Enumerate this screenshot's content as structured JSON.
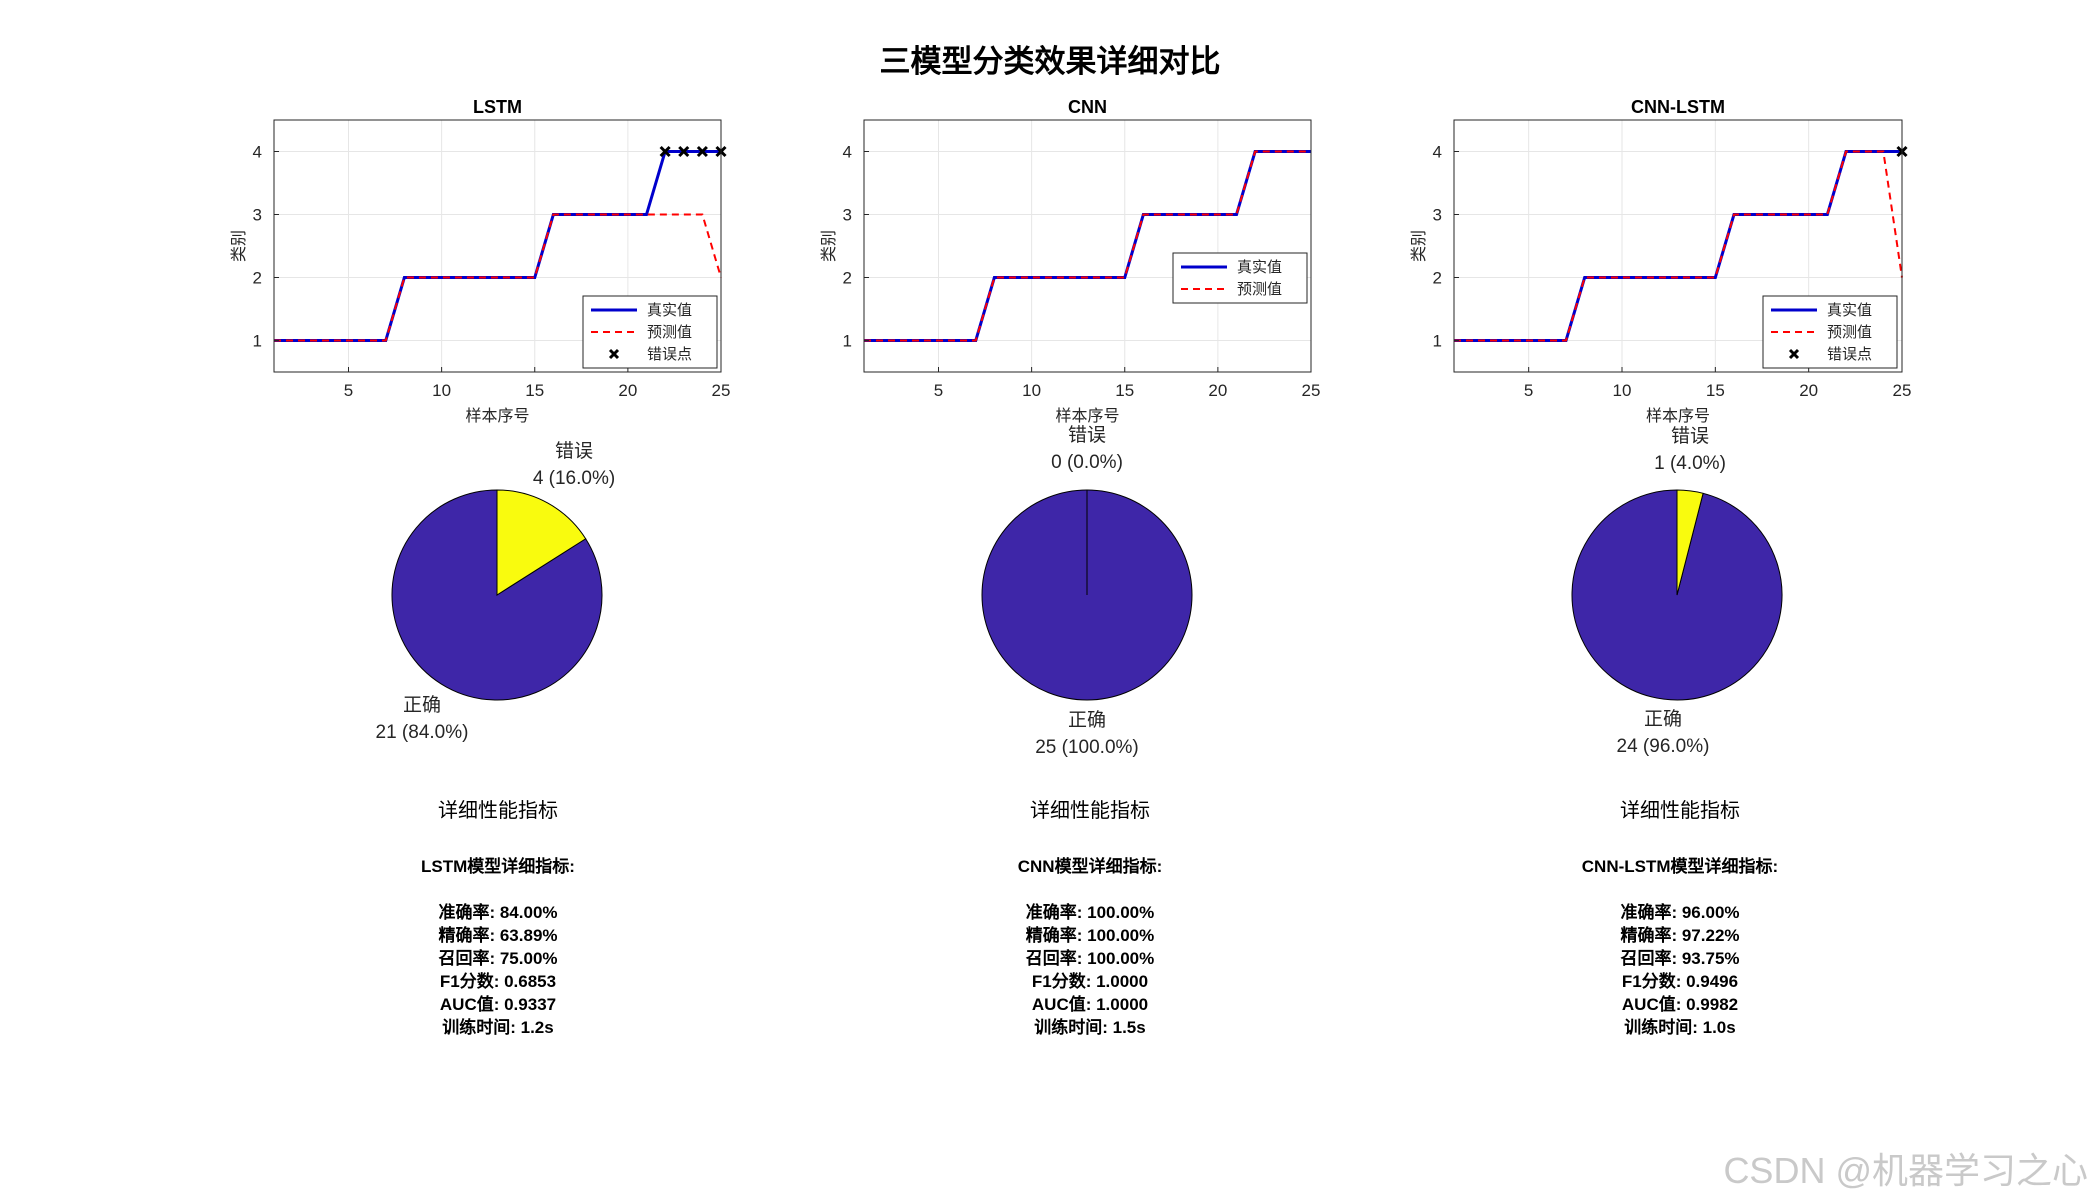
{
  "figure": {
    "title": "三模型分类效果详细对比",
    "watermark": "CSDN @机器学习之心"
  },
  "colors": {
    "true_line": "#0000cc",
    "pred_line": "#ff0000",
    "error_marker": "#000000",
    "pie_correct": "#3e26a8",
    "pie_error": "#f9fb0e",
    "grid": "#e6e6e6",
    "axes": "#262626"
  },
  "chart_data": [
    {
      "type": "line",
      "title": "LSTM",
      "xlabel": "样本序号",
      "ylabel": "类别",
      "xlim": [
        1,
        25
      ],
      "ylim": [
        0.5,
        4.5
      ],
      "xticks": [
        5,
        10,
        15,
        20,
        25
      ],
      "yticks": [
        1,
        2,
        3,
        4
      ],
      "grid": true,
      "legend_position": "bottom-right",
      "x": [
        1,
        2,
        3,
        4,
        5,
        6,
        7,
        8,
        9,
        10,
        11,
        12,
        13,
        14,
        15,
        16,
        17,
        18,
        19,
        20,
        21,
        22,
        23,
        24,
        25
      ],
      "series": [
        {
          "name": "真实值",
          "style": "solid",
          "values": [
            1,
            1,
            1,
            1,
            1,
            1,
            1,
            2,
            2,
            2,
            2,
            2,
            2,
            2,
            2,
            3,
            3,
            3,
            3,
            3,
            3,
            4,
            4,
            4,
            4
          ]
        },
        {
          "name": "预测值",
          "style": "dashed",
          "values": [
            1,
            1,
            1,
            1,
            1,
            1,
            1,
            2,
            2,
            2,
            2,
            2,
            2,
            2,
            2,
            3,
            3,
            3,
            3,
            3,
            3,
            3,
            3,
            3,
            2
          ]
        },
        {
          "name": "错误点",
          "style": "marker",
          "points": [
            [
              22,
              4
            ],
            [
              23,
              4
            ],
            [
              24,
              4
            ],
            [
              25,
              4
            ]
          ]
        }
      ]
    },
    {
      "type": "line",
      "title": "CNN",
      "xlabel": "样本序号",
      "ylabel": "类别",
      "xlim": [
        1,
        25
      ],
      "ylim": [
        0.5,
        4.5
      ],
      "xticks": [
        5,
        10,
        15,
        20,
        25
      ],
      "yticks": [
        1,
        2,
        3,
        4
      ],
      "grid": true,
      "legend_position": "right",
      "x": [
        1,
        2,
        3,
        4,
        5,
        6,
        7,
        8,
        9,
        10,
        11,
        12,
        13,
        14,
        15,
        16,
        17,
        18,
        19,
        20,
        21,
        22,
        23,
        24,
        25
      ],
      "series": [
        {
          "name": "真实值",
          "style": "solid",
          "values": [
            1,
            1,
            1,
            1,
            1,
            1,
            1,
            2,
            2,
            2,
            2,
            2,
            2,
            2,
            2,
            3,
            3,
            3,
            3,
            3,
            3,
            4,
            4,
            4,
            4
          ]
        },
        {
          "name": "预测值",
          "style": "dashed",
          "values": [
            1,
            1,
            1,
            1,
            1,
            1,
            1,
            2,
            2,
            2,
            2,
            2,
            2,
            2,
            2,
            3,
            3,
            3,
            3,
            3,
            3,
            4,
            4,
            4,
            4
          ]
        }
      ]
    },
    {
      "type": "line",
      "title": "CNN-LSTM",
      "xlabel": "样本序号",
      "ylabel": "类别",
      "xlim": [
        1,
        25
      ],
      "ylim": [
        0.5,
        4.5
      ],
      "xticks": [
        5,
        10,
        15,
        20,
        25
      ],
      "yticks": [
        1,
        2,
        3,
        4
      ],
      "grid": true,
      "legend_position": "bottom-right",
      "x": [
        1,
        2,
        3,
        4,
        5,
        6,
        7,
        8,
        9,
        10,
        11,
        12,
        13,
        14,
        15,
        16,
        17,
        18,
        19,
        20,
        21,
        22,
        23,
        24,
        25
      ],
      "series": [
        {
          "name": "真实值",
          "style": "solid",
          "values": [
            1,
            1,
            1,
            1,
            1,
            1,
            1,
            2,
            2,
            2,
            2,
            2,
            2,
            2,
            2,
            3,
            3,
            3,
            3,
            3,
            3,
            4,
            4,
            4,
            4
          ]
        },
        {
          "name": "预测值",
          "style": "dashed",
          "values": [
            1,
            1,
            1,
            1,
            1,
            1,
            1,
            2,
            2,
            2,
            2,
            2,
            2,
            2,
            2,
            3,
            3,
            3,
            3,
            3,
            3,
            4,
            4,
            4,
            2
          ]
        },
        {
          "name": "错误点",
          "style": "marker",
          "points": [
            [
              25,
              4
            ]
          ]
        }
      ]
    },
    {
      "type": "pie",
      "model": "LSTM",
      "slices": [
        {
          "label": "错误",
          "value": 4,
          "text": "4 (16.0%)"
        },
        {
          "label": "正确",
          "value": 21,
          "text": "21 (84.0%)"
        }
      ]
    },
    {
      "type": "pie",
      "model": "CNN",
      "slices": [
        {
          "label": "错误",
          "value": 0,
          "text": "0 (0.0%)"
        },
        {
          "label": "正确",
          "value": 25,
          "text": "25 (100.0%)"
        }
      ]
    },
    {
      "type": "pie",
      "model": "CNN-LSTM",
      "slices": [
        {
          "label": "错误",
          "value": 1,
          "text": "1 (4.0%)"
        },
        {
          "label": "正确",
          "value": 24,
          "text": "24 (96.0%)"
        }
      ]
    }
  ],
  "metrics": [
    {
      "title": "详细性能指标",
      "header": "LSTM模型详细指标:",
      "lines": [
        "准确率: 84.00%",
        "精确率: 63.89%",
        "召回率: 75.00%",
        "F1分数: 0.6853",
        "AUC值: 0.9337",
        "训练时间: 1.2s"
      ]
    },
    {
      "title": "详细性能指标",
      "header": "CNN模型详细指标:",
      "lines": [
        "准确率: 100.00%",
        "精确率: 100.00%",
        "召回率: 100.00%",
        "F1分数: 1.0000",
        "AUC值: 1.0000",
        "训练时间: 1.5s"
      ]
    },
    {
      "title": "详细性能指标",
      "header": "CNN-LSTM模型详细指标:",
      "lines": [
        "准确率: 96.00%",
        "精确率: 97.22%",
        "召回率: 93.75%",
        "F1分数: 0.9496",
        "AUC值: 0.9982",
        "训练时间: 1.0s"
      ]
    }
  ]
}
